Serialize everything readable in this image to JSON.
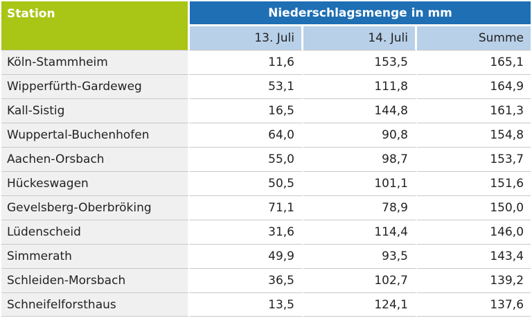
{
  "chart_data": {
    "type": "table",
    "header": {
      "station": "Station",
      "group": "Niederschlagsmenge in mm",
      "columns": [
        "13. Juli",
        "14. Juli",
        "Summe"
      ]
    },
    "rows": [
      {
        "station": "Köln-Stammheim",
        "d13": "11,6",
        "d14": "153,5",
        "sum": "165,1"
      },
      {
        "station": "Wipperfürth-Gardeweg",
        "d13": "53,1",
        "d14": "111,8",
        "sum": "164,9"
      },
      {
        "station": "Kall-Sistig",
        "d13": "16,5",
        "d14": "144,8",
        "sum": "161,3"
      },
      {
        "station": "Wuppertal-Buchenhofen",
        "d13": "64,0",
        "d14": "90,8",
        "sum": "154,8"
      },
      {
        "station": "Aachen-Orsbach",
        "d13": "55,0",
        "d14": "98,7",
        "sum": "153,7"
      },
      {
        "station": "Hückeswagen",
        "d13": "50,5",
        "d14": "101,1",
        "sum": "151,6"
      },
      {
        "station": "Gevelsberg-Oberbröking",
        "d13": "71,1",
        "d14": "78,9",
        "sum": "150,0"
      },
      {
        "station": "Lüdenscheid",
        "d13": "31,6",
        "d14": "114,4",
        "sum": "146,0"
      },
      {
        "station": "Simmerath",
        "d13": "49,9",
        "d14": "93,5",
        "sum": "143,4"
      },
      {
        "station": "Schleiden-Morsbach",
        "d13": "36,5",
        "d14": "102,7",
        "sum": "139,2"
      },
      {
        "station": "Schneifelforsthaus",
        "d13": "13,5",
        "d14": "124,1",
        "sum": "137,6"
      }
    ]
  },
  "colors": {
    "station_header": "#a9c515",
    "group_header": "#1e6fb4",
    "sub_header": "#b8d0e8",
    "station_cell": "#f0f0f0"
  }
}
